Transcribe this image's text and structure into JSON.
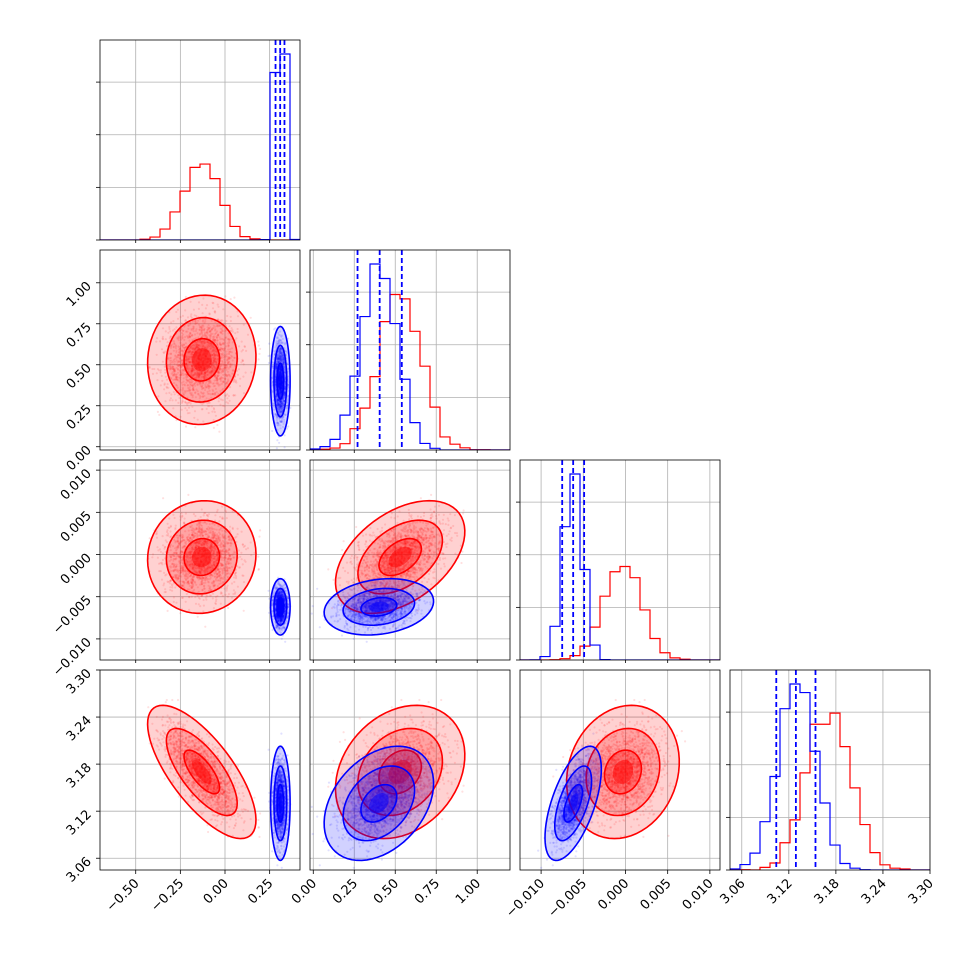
{
  "chart_data": {
    "type": "corner",
    "title": "",
    "grid": true,
    "series": [
      {
        "name": "",
        "color": "#ff0000",
        "params": [
          {
            "mean": -0.13,
            "sd": 0.1
          },
          {
            "mean": 0.53,
            "sd": 0.13
          },
          {
            "mean": -0.0003,
            "sd": 0.0022
          },
          {
            "mean": 3.17,
            "sd": 0.028
          }
        ],
        "correlations": {
          "1-0": 0.05,
          "2-0": 0.05,
          "2-1": 0.45,
          "3-0": -0.72,
          "3-1": 0.25,
          "3-2": 0.15
        }
      },
      {
        "name": "",
        "color": "#0000ff",
        "params": [
          {
            "mean": 0.31,
            "sd": 0.018
          },
          {
            "mean": 0.4,
            "sd": 0.11
          },
          {
            "mean": -0.0062,
            "sd": 0.0011
          },
          {
            "mean": 3.13,
            "sd": 0.024
          }
        ],
        "correlations": {
          "1-0": 0.0,
          "2-0": 0.0,
          "2-1": 0.2,
          "3-0": 0.0,
          "3-1": 0.35,
          "3-2": 0.6
        }
      }
    ],
    "quantile_lines": {
      "color": "#0000ff",
      "values": [
        [
          0.283,
          0.309,
          0.333
        ],
        [
          0.27,
          0.405,
          0.54
        ],
        [
          -0.0075,
          -0.0062,
          -0.0049
        ],
        [
          3.104,
          3.129,
          3.154
        ]
      ]
    },
    "axes": [
      {
        "range": [
          -0.7,
          0.42
        ],
        "ticks": [
          -0.5,
          -0.25,
          0.0,
          0.25
        ],
        "tick_labels": [
          "−0.50",
          "−0.25",
          "0.00",
          "0.25"
        ]
      },
      {
        "range": [
          -0.02,
          1.2
        ],
        "ticks": [
          0.0,
          0.25,
          0.5,
          0.75,
          1.0
        ],
        "tick_labels": [
          "0.00",
          "0.25",
          "0.50",
          "0.75",
          "1.00"
        ]
      },
      {
        "range": [
          -0.0125,
          0.0112
        ],
        "ticks": [
          -0.01,
          -0.005,
          0.0,
          0.005,
          0.01
        ],
        "tick_labels": [
          "−0.010",
          "−0.005",
          "0.000",
          "0.005",
          "0.010"
        ]
      },
      {
        "range": [
          3.045,
          3.3
        ],
        "ticks": [
          3.06,
          3.12,
          3.18,
          3.24,
          3.3
        ],
        "tick_labels": [
          "3.06",
          "3.12",
          "3.18",
          "3.24",
          "3.30"
        ]
      }
    ],
    "contour_levels": [
      0.39,
      0.86,
      0.99
    ]
  }
}
